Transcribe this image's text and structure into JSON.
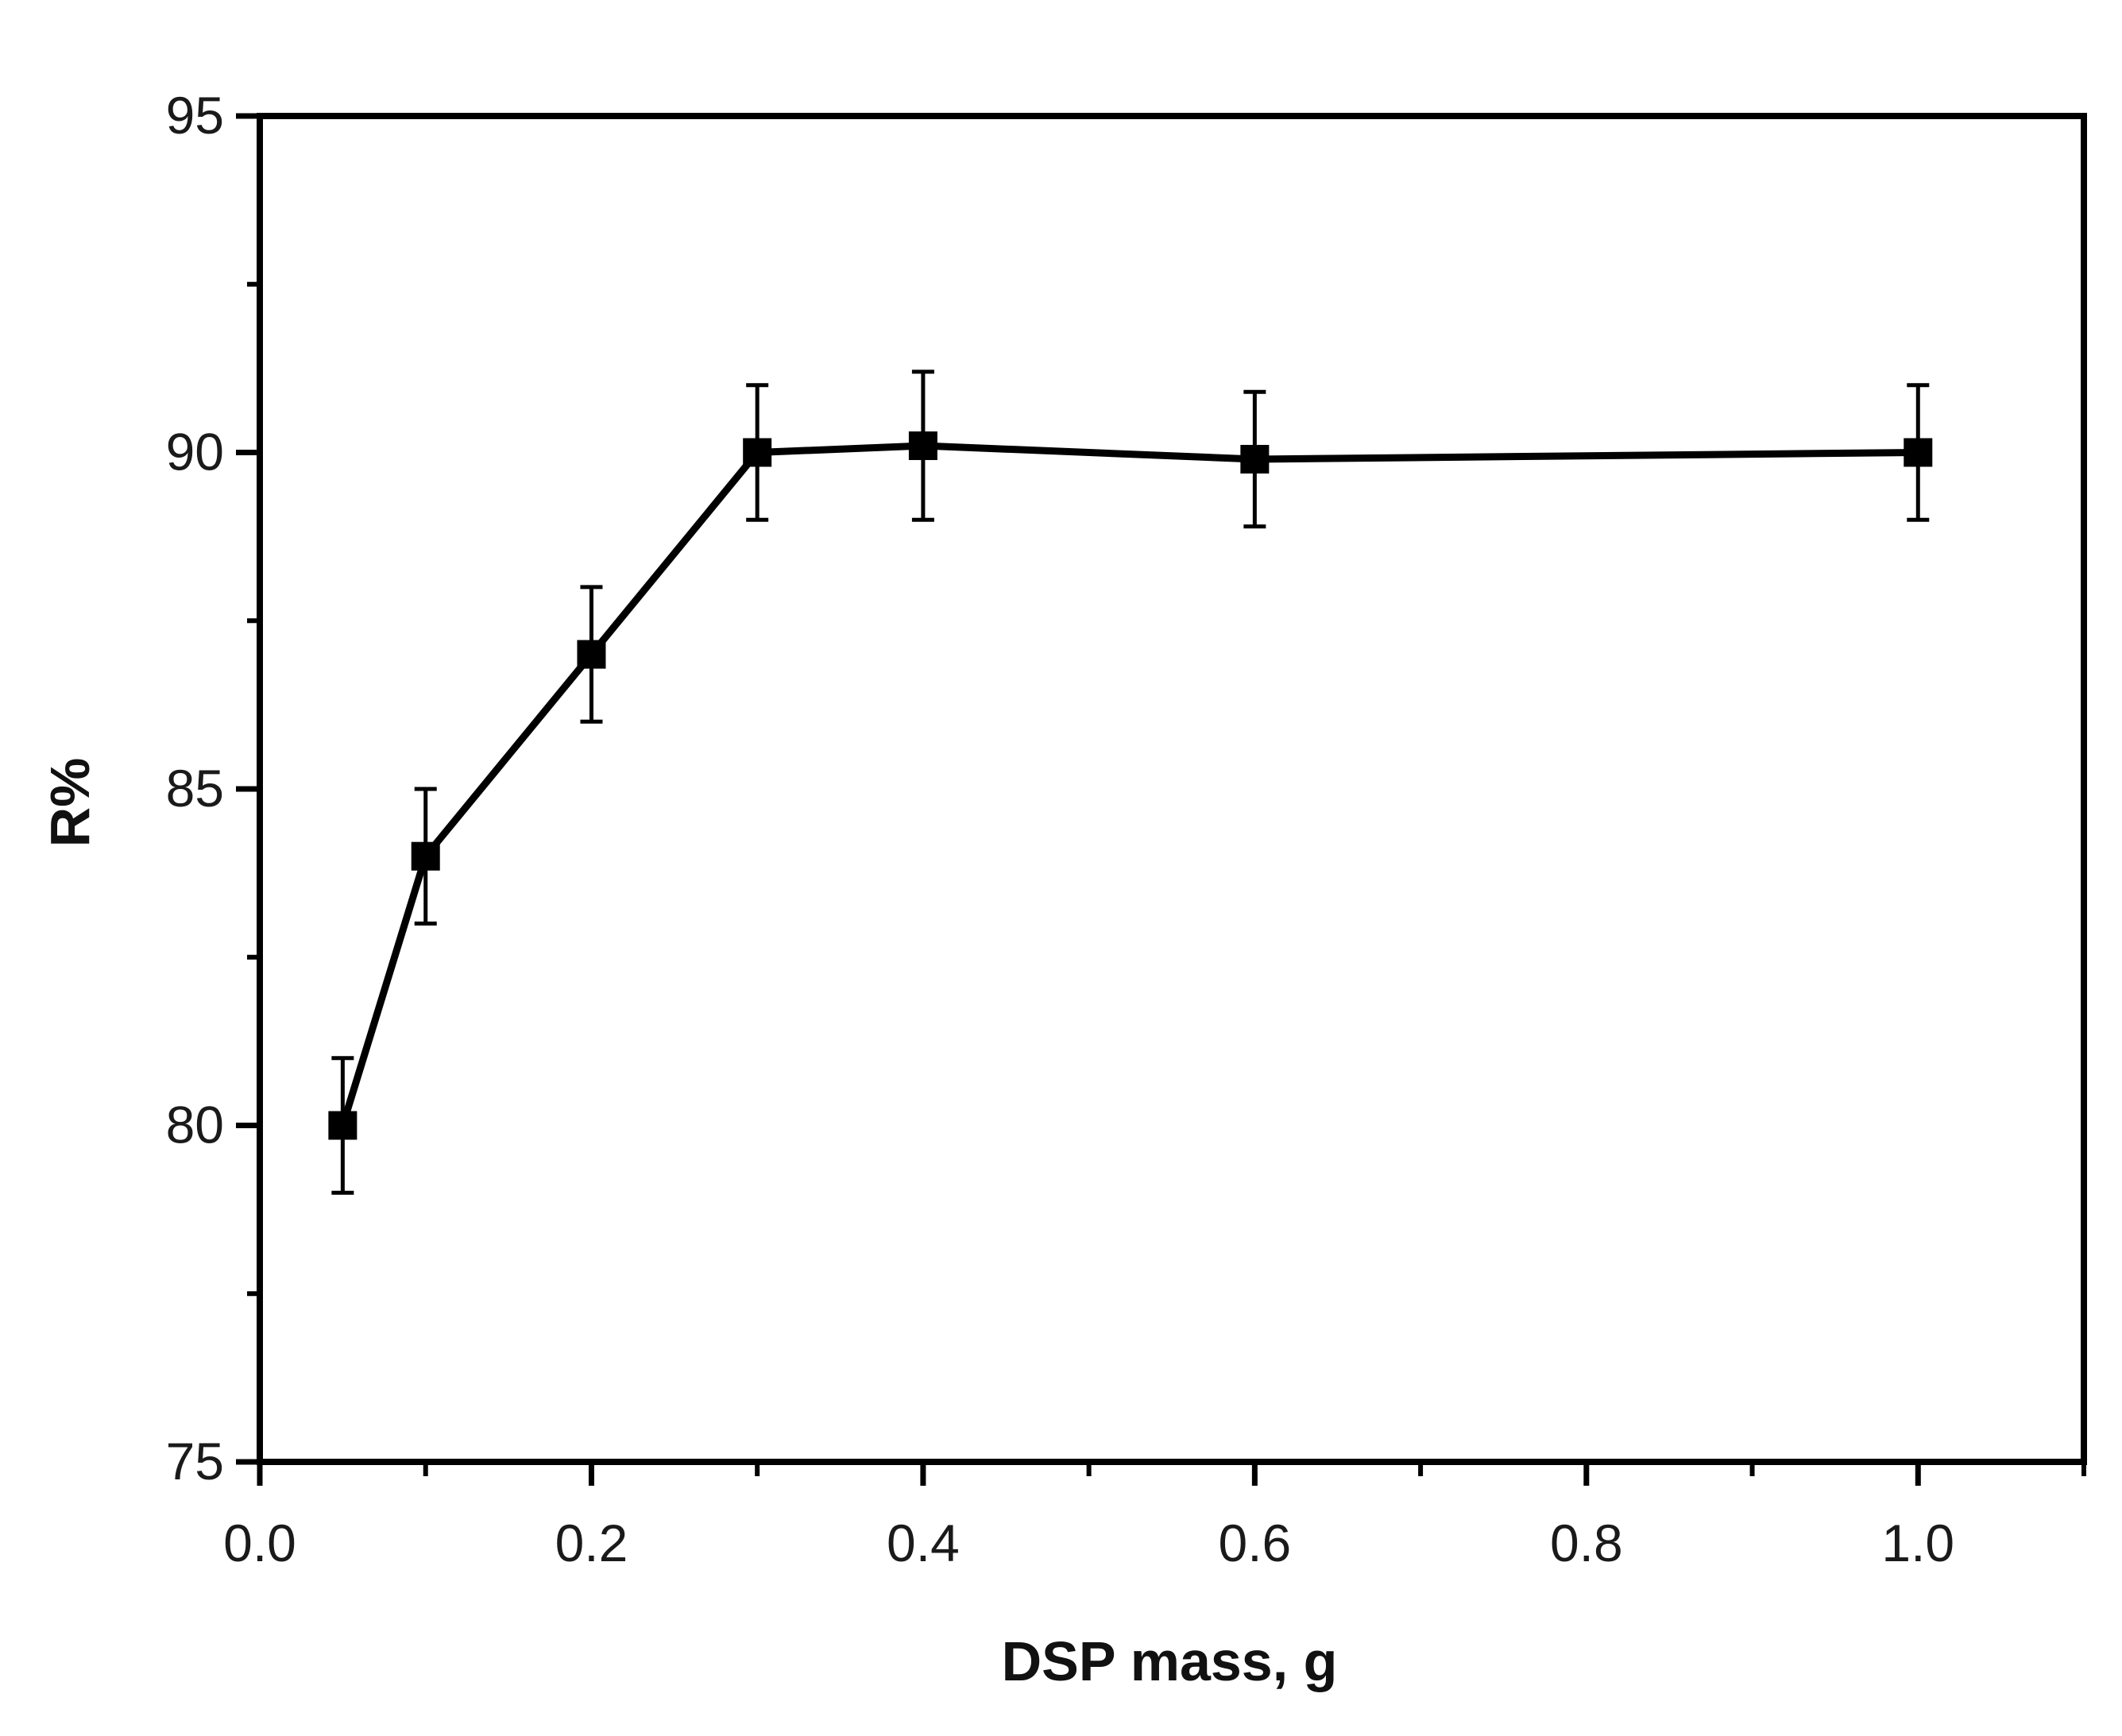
{
  "chart_data": {
    "type": "line",
    "title": "",
    "xlabel": "DSP mass, g",
    "ylabel": "R%",
    "xlim": [
      0.0,
      1.1
    ],
    "ylim": [
      75,
      95
    ],
    "x_ticks": [
      0.0,
      0.2,
      0.4,
      0.6,
      0.8,
      1.0
    ],
    "x_tick_labels": [
      "0.0",
      "0.2",
      "0.4",
      "0.6",
      "0.8",
      "1.0"
    ],
    "x_minor_ticks": [
      0.1,
      0.3,
      0.5,
      0.7,
      0.9,
      1.1
    ],
    "y_ticks": [
      75,
      80,
      85,
      90,
      95
    ],
    "y_tick_labels": [
      "75",
      "80",
      "85",
      "90",
      "95"
    ],
    "y_minor_ticks": [
      77.5,
      82.5,
      87.5,
      92.5
    ],
    "grid": false,
    "legend": "none",
    "series": [
      {
        "marker": "square",
        "color": "#000000",
        "x": [
          0.05,
          0.1,
          0.2,
          0.3,
          0.4,
          0.6,
          1.0
        ],
        "y": [
          80.0,
          84.0,
          87.0,
          90.0,
          90.1,
          89.9,
          90.0
        ],
        "error": [
          1.0,
          1.0,
          1.0,
          1.0,
          1.1,
          1.0,
          1.0
        ]
      }
    ]
  }
}
